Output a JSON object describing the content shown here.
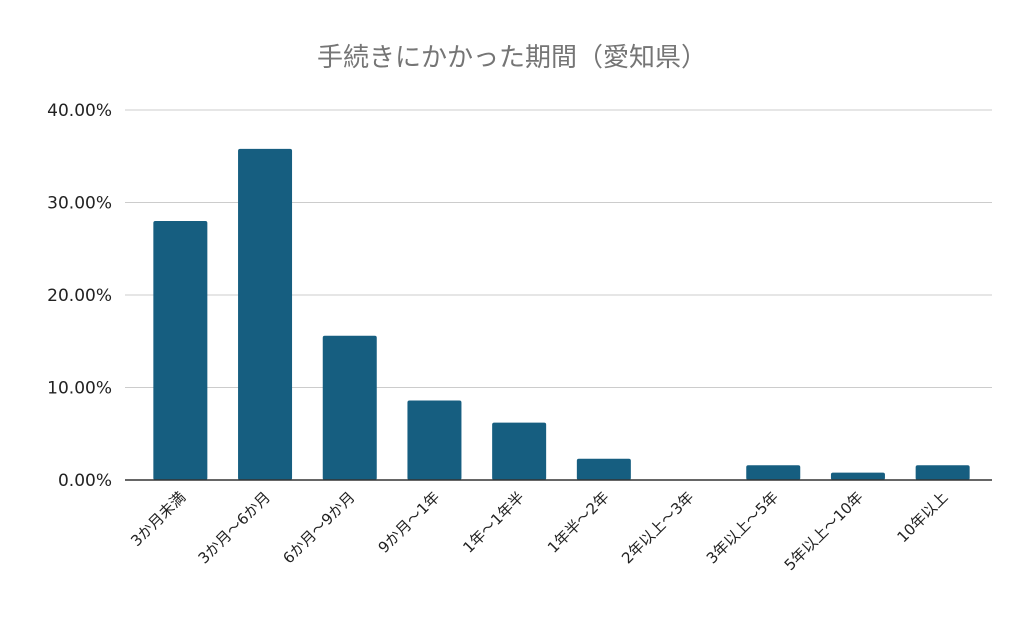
{
  "chart_data": {
    "type": "bar",
    "title": "手続きにかかった期間（愛知県）",
    "xlabel": "",
    "ylabel": "",
    "categories": [
      "3か月未満",
      "3か月～6か月",
      "6か月～9か月",
      "9か月～1年",
      "1年～1年半",
      "1年半～2年",
      "2年以上～3年",
      "3年以上～5年",
      "5年以上～10年",
      "10年以上"
    ],
    "values": [
      28.0,
      35.8,
      15.6,
      8.6,
      6.2,
      2.3,
      0.0,
      1.6,
      0.8,
      1.6
    ],
    "ylim": [
      0,
      40
    ],
    "yticks": [
      "0.00%",
      "10.00%",
      "20.00%",
      "30.00%",
      "40.00%"
    ],
    "grid": true,
    "legend": "none",
    "bar_color": "#165e80"
  }
}
